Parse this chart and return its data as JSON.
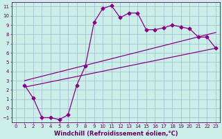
{
  "xlabel": "Windchill (Refroidissement éolien,°C)",
  "bg_color": "#cceee8",
  "line_color": "#880088",
  "grid_color": "#99aacc",
  "xlim": [
    -0.5,
    23.5
  ],
  "ylim": [
    -1.5,
    11.5
  ],
  "xticks": [
    0,
    1,
    2,
    3,
    4,
    5,
    6,
    7,
    8,
    9,
    10,
    11,
    12,
    13,
    14,
    15,
    16,
    17,
    18,
    19,
    20,
    21,
    22,
    23
  ],
  "yticks": [
    -1,
    0,
    1,
    2,
    3,
    4,
    5,
    6,
    7,
    8,
    9,
    10,
    11
  ],
  "curve_x": [
    1,
    2,
    3,
    4,
    5,
    6,
    7,
    8,
    9,
    10,
    11,
    12,
    13,
    14,
    15,
    16,
    17,
    18,
    19,
    20,
    21,
    22,
    23
  ],
  "curve_y": [
    2.5,
    1.1,
    -1.0,
    -1.0,
    -1.2,
    -0.7,
    2.5,
    4.6,
    9.3,
    10.8,
    11.1,
    9.8,
    10.3,
    10.3,
    8.5,
    8.5,
    8.7,
    9.0,
    8.8,
    8.6,
    7.7,
    7.7,
    6.5
  ],
  "line2_x": [
    1,
    23
  ],
  "line2_y": [
    2.3,
    6.5
  ],
  "line3_x": [
    1,
    23
  ],
  "line3_y": [
    3.0,
    8.2
  ],
  "marker_size": 2.5,
  "line_width": 0.9,
  "tick_fontsize": 5,
  "label_fontsize": 6,
  "tick_color": "#660066",
  "spine_color": "#660066"
}
